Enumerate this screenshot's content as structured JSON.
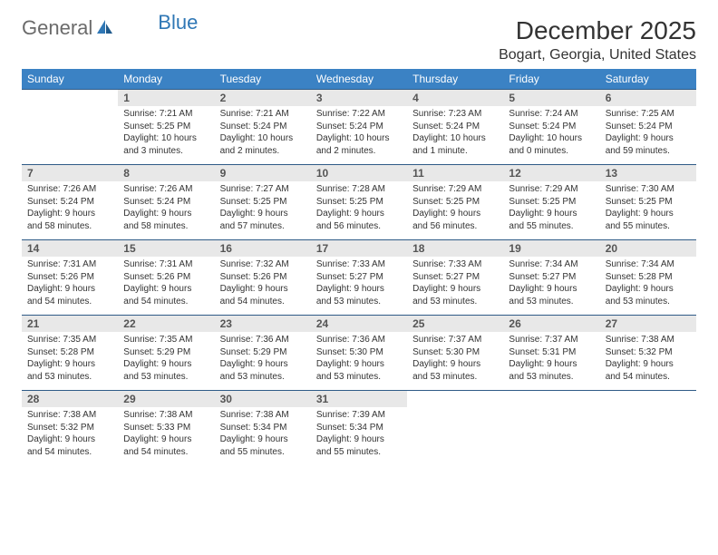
{
  "logo": {
    "word1": "General",
    "word2": "Blue"
  },
  "title": "December 2025",
  "location": "Bogart, Georgia, United States",
  "colors": {
    "header_bg": "#3b82c4",
    "header_fg": "#ffffff",
    "daynum_bg": "#e8e8e8",
    "rule": "#2f5b87",
    "logo_gray": "#6b6b6b",
    "logo_blue": "#2f77b5"
  },
  "typography": {
    "title_fontsize": 28,
    "location_fontsize": 16,
    "dayhead_fontsize": 12,
    "daynum_fontsize": 12,
    "body_fontsize": 10
  },
  "day_headers": [
    "Sunday",
    "Monday",
    "Tuesday",
    "Wednesday",
    "Thursday",
    "Friday",
    "Saturday"
  ],
  "weeks": [
    [
      {
        "blank": true
      },
      {
        "n": "1",
        "sunrise": "Sunrise: 7:21 AM",
        "sunset": "Sunset: 5:25 PM",
        "daylight": "Daylight: 10 hours and 3 minutes."
      },
      {
        "n": "2",
        "sunrise": "Sunrise: 7:21 AM",
        "sunset": "Sunset: 5:24 PM",
        "daylight": "Daylight: 10 hours and 2 minutes."
      },
      {
        "n": "3",
        "sunrise": "Sunrise: 7:22 AM",
        "sunset": "Sunset: 5:24 PM",
        "daylight": "Daylight: 10 hours and 2 minutes."
      },
      {
        "n": "4",
        "sunrise": "Sunrise: 7:23 AM",
        "sunset": "Sunset: 5:24 PM",
        "daylight": "Daylight: 10 hours and 1 minute."
      },
      {
        "n": "5",
        "sunrise": "Sunrise: 7:24 AM",
        "sunset": "Sunset: 5:24 PM",
        "daylight": "Daylight: 10 hours and 0 minutes."
      },
      {
        "n": "6",
        "sunrise": "Sunrise: 7:25 AM",
        "sunset": "Sunset: 5:24 PM",
        "daylight": "Daylight: 9 hours and 59 minutes."
      }
    ],
    [
      {
        "n": "7",
        "sunrise": "Sunrise: 7:26 AM",
        "sunset": "Sunset: 5:24 PM",
        "daylight": "Daylight: 9 hours and 58 minutes."
      },
      {
        "n": "8",
        "sunrise": "Sunrise: 7:26 AM",
        "sunset": "Sunset: 5:24 PM",
        "daylight": "Daylight: 9 hours and 58 minutes."
      },
      {
        "n": "9",
        "sunrise": "Sunrise: 7:27 AM",
        "sunset": "Sunset: 5:25 PM",
        "daylight": "Daylight: 9 hours and 57 minutes."
      },
      {
        "n": "10",
        "sunrise": "Sunrise: 7:28 AM",
        "sunset": "Sunset: 5:25 PM",
        "daylight": "Daylight: 9 hours and 56 minutes."
      },
      {
        "n": "11",
        "sunrise": "Sunrise: 7:29 AM",
        "sunset": "Sunset: 5:25 PM",
        "daylight": "Daylight: 9 hours and 56 minutes."
      },
      {
        "n": "12",
        "sunrise": "Sunrise: 7:29 AM",
        "sunset": "Sunset: 5:25 PM",
        "daylight": "Daylight: 9 hours and 55 minutes."
      },
      {
        "n": "13",
        "sunrise": "Sunrise: 7:30 AM",
        "sunset": "Sunset: 5:25 PM",
        "daylight": "Daylight: 9 hours and 55 minutes."
      }
    ],
    [
      {
        "n": "14",
        "sunrise": "Sunrise: 7:31 AM",
        "sunset": "Sunset: 5:26 PM",
        "daylight": "Daylight: 9 hours and 54 minutes."
      },
      {
        "n": "15",
        "sunrise": "Sunrise: 7:31 AM",
        "sunset": "Sunset: 5:26 PM",
        "daylight": "Daylight: 9 hours and 54 minutes."
      },
      {
        "n": "16",
        "sunrise": "Sunrise: 7:32 AM",
        "sunset": "Sunset: 5:26 PM",
        "daylight": "Daylight: 9 hours and 54 minutes."
      },
      {
        "n": "17",
        "sunrise": "Sunrise: 7:33 AM",
        "sunset": "Sunset: 5:27 PM",
        "daylight": "Daylight: 9 hours and 53 minutes."
      },
      {
        "n": "18",
        "sunrise": "Sunrise: 7:33 AM",
        "sunset": "Sunset: 5:27 PM",
        "daylight": "Daylight: 9 hours and 53 minutes."
      },
      {
        "n": "19",
        "sunrise": "Sunrise: 7:34 AM",
        "sunset": "Sunset: 5:27 PM",
        "daylight": "Daylight: 9 hours and 53 minutes."
      },
      {
        "n": "20",
        "sunrise": "Sunrise: 7:34 AM",
        "sunset": "Sunset: 5:28 PM",
        "daylight": "Daylight: 9 hours and 53 minutes."
      }
    ],
    [
      {
        "n": "21",
        "sunrise": "Sunrise: 7:35 AM",
        "sunset": "Sunset: 5:28 PM",
        "daylight": "Daylight: 9 hours and 53 minutes."
      },
      {
        "n": "22",
        "sunrise": "Sunrise: 7:35 AM",
        "sunset": "Sunset: 5:29 PM",
        "daylight": "Daylight: 9 hours and 53 minutes."
      },
      {
        "n": "23",
        "sunrise": "Sunrise: 7:36 AM",
        "sunset": "Sunset: 5:29 PM",
        "daylight": "Daylight: 9 hours and 53 minutes."
      },
      {
        "n": "24",
        "sunrise": "Sunrise: 7:36 AM",
        "sunset": "Sunset: 5:30 PM",
        "daylight": "Daylight: 9 hours and 53 minutes."
      },
      {
        "n": "25",
        "sunrise": "Sunrise: 7:37 AM",
        "sunset": "Sunset: 5:30 PM",
        "daylight": "Daylight: 9 hours and 53 minutes."
      },
      {
        "n": "26",
        "sunrise": "Sunrise: 7:37 AM",
        "sunset": "Sunset: 5:31 PM",
        "daylight": "Daylight: 9 hours and 53 minutes."
      },
      {
        "n": "27",
        "sunrise": "Sunrise: 7:38 AM",
        "sunset": "Sunset: 5:32 PM",
        "daylight": "Daylight: 9 hours and 54 minutes."
      }
    ],
    [
      {
        "n": "28",
        "sunrise": "Sunrise: 7:38 AM",
        "sunset": "Sunset: 5:32 PM",
        "daylight": "Daylight: 9 hours and 54 minutes."
      },
      {
        "n": "29",
        "sunrise": "Sunrise: 7:38 AM",
        "sunset": "Sunset: 5:33 PM",
        "daylight": "Daylight: 9 hours and 54 minutes."
      },
      {
        "n": "30",
        "sunrise": "Sunrise: 7:38 AM",
        "sunset": "Sunset: 5:34 PM",
        "daylight": "Daylight: 9 hours and 55 minutes."
      },
      {
        "n": "31",
        "sunrise": "Sunrise: 7:39 AM",
        "sunset": "Sunset: 5:34 PM",
        "daylight": "Daylight: 9 hours and 55 minutes."
      },
      {
        "blank": true
      },
      {
        "blank": true
      },
      {
        "blank": true
      }
    ]
  ]
}
